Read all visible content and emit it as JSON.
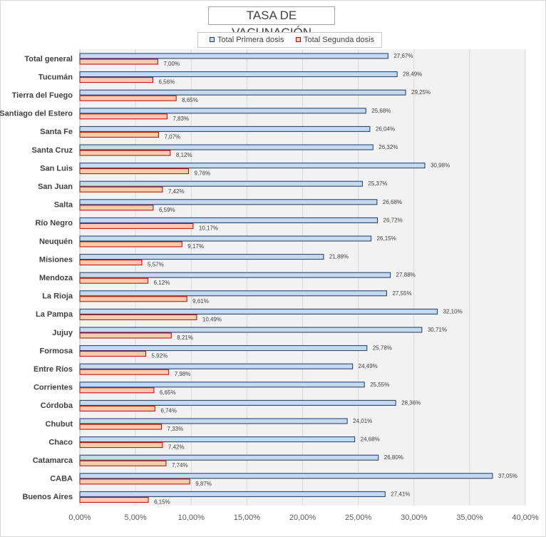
{
  "chart_data": {
    "type": "bar",
    "orientation": "horizontal",
    "title": "TASA DE VACUNACIÓN",
    "categories": [
      "Total general",
      "Tucumán",
      "Tierra del Fuego",
      "Santiago del Estero",
      "Santa Fe",
      "Santa Cruz",
      "San Luis",
      "San Juan",
      "Salta",
      "Río Negro",
      "Neuquén",
      "Misiones",
      "Mendoza",
      "La Rioja",
      "La Pampa",
      "Jujuy",
      "Formosa",
      "Entre Ríos",
      "Corrientes",
      "Córdoba",
      "Chubut",
      "Chaco",
      "Catamarca",
      "CABA",
      "Buenos Aires"
    ],
    "series": [
      {
        "name": "Total Primera dosis",
        "color": "#c5d9f1",
        "border": "#1f3864",
        "values": [
          27.67,
          28.49,
          29.25,
          25.68,
          26.04,
          26.32,
          30.98,
          25.37,
          26.68,
          26.72,
          26.15,
          21.88,
          27.88,
          27.55,
          32.1,
          30.71,
          25.78,
          24.49,
          25.55,
          28.36,
          24.01,
          24.68,
          26.8,
          37.05,
          27.41
        ],
        "labels": [
          "27,67%",
          "28,49%",
          "29,25%",
          "25,68%",
          "26,04%",
          "26,32%",
          "30,98%",
          "25,37%",
          "26,68%",
          "26,72%",
          "26,15%",
          "21,88%",
          "27,88%",
          "27,55%",
          "32,10%",
          "30,71%",
          "25,78%",
          "24,49%",
          "25,55%",
          "28,36%",
          "24,01%",
          "24,68%",
          "26,80%",
          "37,05%",
          "27,41%"
        ]
      },
      {
        "name": "Total Segunda dosis",
        "color": "#f8cbad",
        "border": "#c00000",
        "values": [
          7.0,
          6.56,
          8.65,
          7.83,
          7.07,
          8.12,
          9.76,
          7.42,
          6.59,
          10.17,
          9.17,
          5.57,
          6.12,
          9.61,
          10.49,
          8.21,
          5.92,
          7.98,
          6.65,
          6.74,
          7.33,
          7.42,
          7.74,
          9.87,
          6.15
        ],
        "labels": [
          "7,00%",
          "6,56%",
          "8,65%",
          "7,83%",
          "7,07%",
          "8,12%",
          "9,76%",
          "7,42%",
          "6,59%",
          "10,17%",
          "9,17%",
          "5,57%",
          "6,12%",
          "9,61%",
          "10,49%",
          "8,21%",
          "5,92%",
          "7,98%",
          "6,65%",
          "6,74%",
          "7,33%",
          "7,42%",
          "7,74%",
          "9,87%",
          "6,15%"
        ]
      }
    ],
    "xlim": [
      0,
      40
    ],
    "xticks": [
      0,
      5,
      10,
      15,
      20,
      25,
      30,
      35,
      40
    ],
    "xtick_labels": [
      "0,00%",
      "5,00%",
      "10,00%",
      "15,00%",
      "20,00%",
      "25,00%",
      "30,00%",
      "35,00%",
      "40,00%"
    ],
    "grid": "vertical",
    "legend_position": "top",
    "plot_background": "#f2f2f2"
  }
}
